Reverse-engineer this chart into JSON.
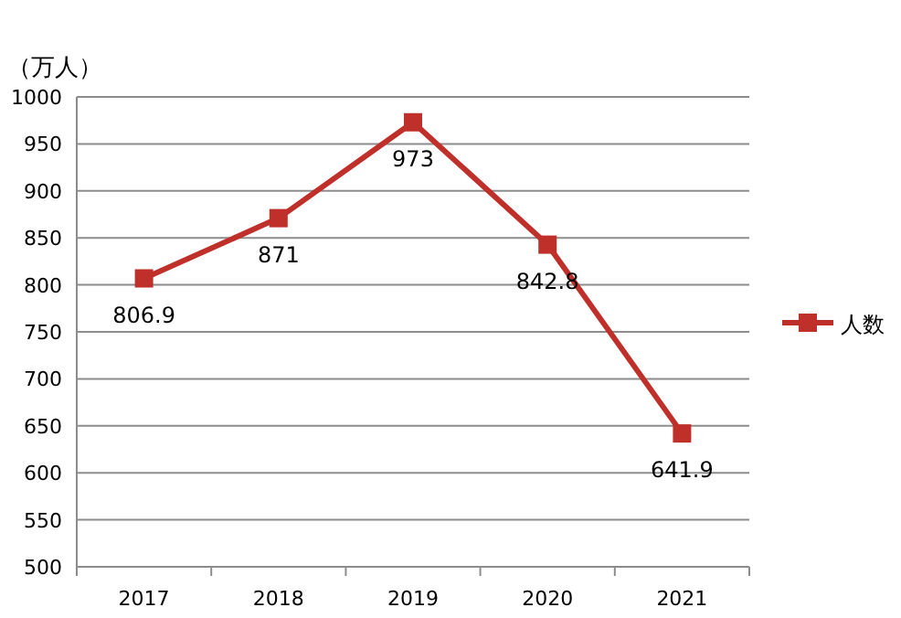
{
  "chart_data": {
    "type": "line",
    "ylabel": "（万人）",
    "categories": [
      "2017",
      "2018",
      "2019",
      "2020",
      "2021"
    ],
    "series": [
      {
        "name": "人数",
        "color": "#c0302a",
        "values": [
          806.9,
          871,
          973,
          842.8,
          641.9
        ]
      }
    ],
    "ylim": [
      500,
      1000
    ],
    "yticks": [
      500,
      550,
      600,
      650,
      700,
      750,
      800,
      850,
      900,
      950,
      1000
    ],
    "grid": "y",
    "legend": "right",
    "marker": "square",
    "line_style": "solid",
    "data_labels": true
  }
}
